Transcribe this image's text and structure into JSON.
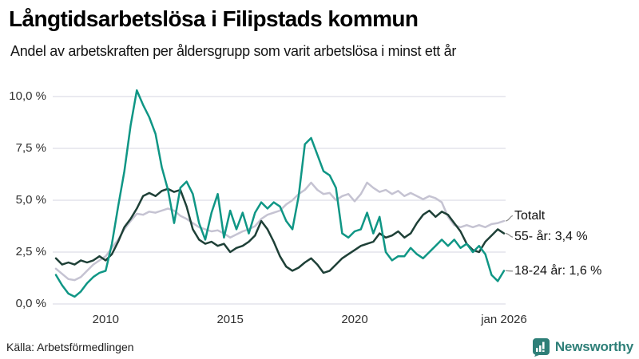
{
  "header": {
    "title": "Långtidsarbetslösa i Filipstads kommun",
    "subtitle": "Andel av arbetskraften per åldersgrupp som varit arbetslösa i minst ett år"
  },
  "footer": {
    "source": "Källa: Arbetsförmedlingen",
    "brand": "Newsworthy"
  },
  "colors": {
    "teal_line": "#0f9685",
    "dark_green_line": "#1e4037",
    "light_gray_line": "#c5c3d2",
    "gridline": "#e4e4ec",
    "connector": "#8f8f8f",
    "brand_teal": "#2e7f78",
    "tick_text": "#303030",
    "label_text": "#111111"
  },
  "chart_data": {
    "type": "line",
    "title": "Långtidsarbetslösa i Filipstads kommun",
    "subtitle": "Andel av arbetskraften per åldersgrupp som varit arbetslösa i minst ett år",
    "unit": "% av arbetskraften",
    "grid": "horizontal-only",
    "legend_position": "end-of-line-labels",
    "x_axis": {
      "start_year": 2008.0,
      "end_year": 2026.0,
      "step_years": 0.25,
      "ticks": [
        {
          "label": "2010",
          "year": 2010
        },
        {
          "label": "2015",
          "year": 2015
        },
        {
          "label": "2020",
          "year": 2020
        },
        {
          "label": "jan 2026",
          "year": 2026
        }
      ]
    },
    "y_axis": {
      "min": 0,
      "max": 10,
      "tick_values": [
        0,
        2.5,
        5,
        7.5,
        10
      ],
      "tick_labels": [
        "0,0 %",
        "2,5 %",
        "5,0 %",
        "7,5 %",
        "10,0 %"
      ]
    },
    "series": [
      {
        "name": "Totalt",
        "end_label": "Totalt",
        "color": "#c5c3d2",
        "last_value": 4.0,
        "values": [
          1.7,
          1.45,
          1.2,
          1.15,
          1.3,
          1.6,
          1.9,
          2.1,
          2.3,
          2.7,
          3.1,
          3.6,
          4.0,
          4.35,
          4.3,
          4.45,
          4.4,
          4.5,
          4.6,
          4.5,
          4.25,
          4.1,
          3.9,
          3.7,
          3.6,
          3.5,
          3.55,
          3.4,
          3.2,
          3.35,
          3.5,
          3.6,
          3.75,
          4.1,
          4.3,
          4.4,
          4.5,
          4.8,
          5.0,
          5.3,
          5.5,
          5.85,
          5.5,
          5.3,
          5.35,
          5.0,
          5.2,
          5.3,
          4.95,
          5.3,
          5.85,
          5.6,
          5.4,
          5.5,
          5.3,
          5.45,
          5.2,
          5.35,
          5.2,
          5.05,
          5.2,
          5.1,
          4.9,
          4.2,
          3.8,
          3.7,
          3.8,
          3.7,
          3.8,
          3.7,
          3.85,
          3.9,
          4.0
        ]
      },
      {
        "name": "55- år",
        "end_label": "55- år: 3,4 %",
        "color": "#1e4037",
        "last_value": 3.4,
        "values": [
          2.2,
          1.9,
          2.0,
          1.9,
          2.1,
          2.0,
          2.1,
          2.3,
          2.1,
          2.4,
          3.0,
          3.7,
          4.1,
          4.6,
          5.2,
          5.35,
          5.2,
          5.45,
          5.55,
          5.4,
          5.5,
          4.7,
          3.6,
          3.1,
          2.9,
          3.0,
          2.8,
          2.9,
          2.5,
          2.7,
          2.8,
          3.0,
          3.3,
          4.0,
          3.6,
          3.0,
          2.3,
          1.8,
          1.6,
          1.75,
          2.0,
          2.2,
          1.9,
          1.5,
          1.6,
          1.9,
          2.2,
          2.4,
          2.6,
          2.8,
          2.9,
          3.0,
          3.4,
          3.2,
          3.3,
          3.5,
          3.2,
          3.4,
          3.9,
          4.3,
          4.5,
          4.2,
          4.45,
          4.3,
          3.9,
          3.5,
          2.9,
          2.6,
          2.5,
          3.0,
          3.3,
          3.6,
          3.4
        ]
      },
      {
        "name": "18-24 år",
        "end_label": "18-24 år: 1,6 %",
        "color": "#0f9685",
        "last_value": 1.6,
        "values": [
          1.4,
          0.9,
          0.5,
          0.35,
          0.6,
          1.0,
          1.3,
          1.5,
          1.6,
          2.9,
          4.7,
          6.4,
          8.6,
          10.3,
          9.6,
          9.0,
          8.2,
          6.6,
          5.5,
          3.9,
          5.6,
          5.9,
          5.3,
          3.9,
          3.1,
          4.4,
          5.3,
          3.2,
          4.5,
          3.6,
          4.4,
          3.4,
          4.4,
          4.9,
          4.6,
          4.9,
          4.7,
          4.0,
          3.6,
          5.2,
          7.7,
          8.0,
          7.2,
          6.4,
          6.2,
          5.6,
          3.4,
          3.2,
          3.5,
          3.6,
          4.4,
          3.4,
          4.2,
          2.5,
          2.1,
          2.3,
          2.3,
          2.7,
          2.4,
          2.2,
          2.5,
          2.8,
          3.1,
          2.8,
          3.1,
          2.7,
          2.9,
          2.5,
          2.8,
          2.4,
          1.4,
          1.1,
          1.6
        ]
      }
    ]
  }
}
